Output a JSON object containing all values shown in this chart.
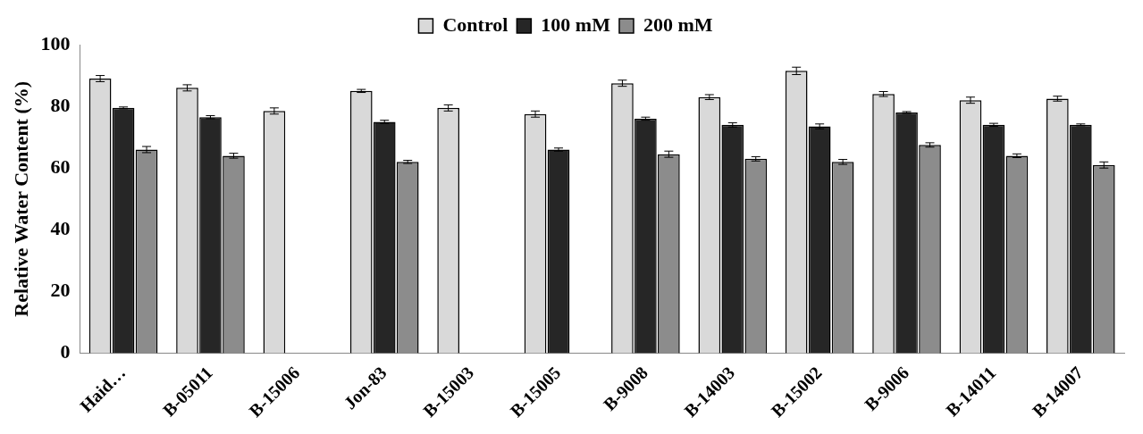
{
  "chart_data": {
    "type": "bar",
    "ylabel": "Relative Water Content (%)",
    "categories": [
      "Haid…",
      "B-05011",
      "B-15006",
      "Jon-83",
      "B-15003",
      "B-15005",
      "B-9008",
      "B-14003",
      "B-15002",
      "B-9006",
      "B-14011",
      "B-14007"
    ],
    "series": [
      {
        "name": "Control",
        "color": "#d9d9d9",
        "values": [
          89,
          86,
          78.5,
          85,
          79.5,
          77.5,
          87.5,
          83,
          91.5,
          84,
          82,
          82.5
        ],
        "errors": [
          1,
          1,
          1,
          0.5,
          1,
          1,
          1,
          0.8,
          1.2,
          0.8,
          1,
          0.8
        ]
      },
      {
        "name": "100 mM",
        "color": "#262626",
        "values": [
          79.5,
          76.5,
          null,
          75,
          null,
          66,
          76,
          74,
          73.5,
          78,
          74,
          74
        ],
        "errors": [
          0.3,
          0.5,
          null,
          0.5,
          null,
          0.5,
          0.5,
          0.7,
          0.8,
          0.3,
          0.5,
          0.3
        ]
      },
      {
        "name": "200 mM",
        "color": "#8c8c8c",
        "values": [
          66,
          64,
          null,
          62,
          null,
          null,
          64.5,
          63,
          62,
          67.5,
          64,
          61
        ],
        "errors": [
          1,
          0.8,
          null,
          0.5,
          null,
          null,
          1,
          0.7,
          0.8,
          0.7,
          0.6,
          1
        ]
      }
    ],
    "ylim": [
      0,
      100
    ],
    "yticks": [
      0,
      20,
      40,
      60,
      80,
      100
    ],
    "grid": false,
    "legend": "top"
  }
}
